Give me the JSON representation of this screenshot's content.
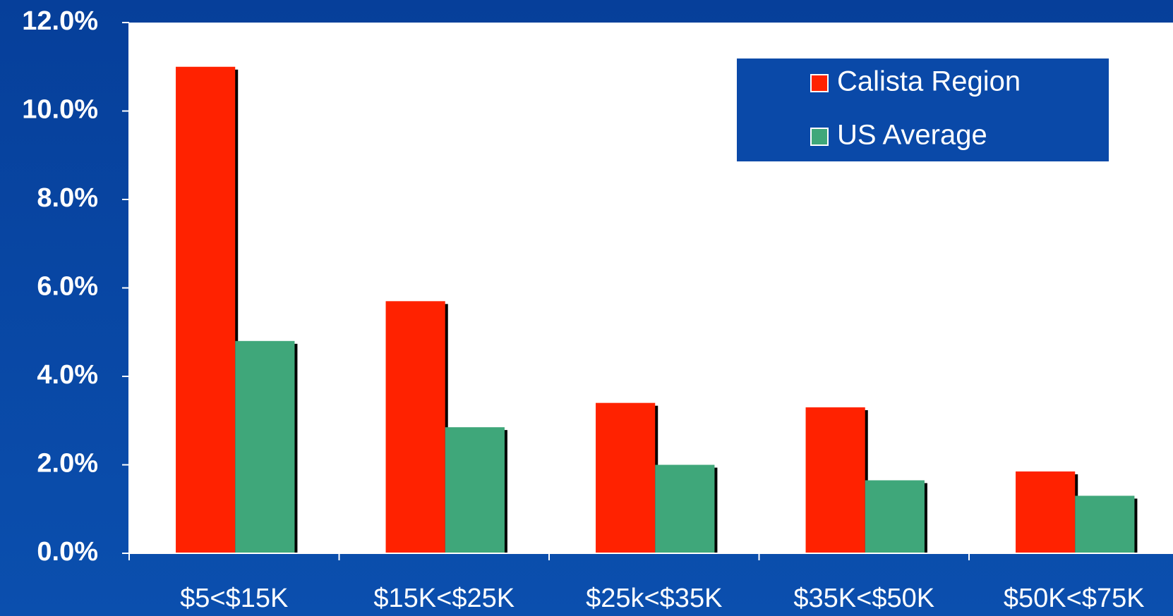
{
  "chart_data": {
    "type": "bar",
    "categories": [
      "$5<$15K",
      "$15K<$25K",
      "$25k<$35K",
      "$35K<$50K",
      "$50K<$75K"
    ],
    "series": [
      {
        "name": "Calista Region",
        "color": "#ff2200",
        "values": [
          11.0,
          5.7,
          3.4,
          3.3,
          1.85
        ]
      },
      {
        "name": "US Average",
        "color": "#3fa77a",
        "values": [
          4.8,
          2.85,
          2.0,
          1.65,
          1.3
        ]
      }
    ],
    "ylim": [
      0,
      12
    ],
    "yticks": [
      {
        "value": 0,
        "label": "0.0%"
      },
      {
        "value": 2,
        "label": "2.0%"
      },
      {
        "value": 4,
        "label": "4.0%"
      },
      {
        "value": 6,
        "label": "6.0%"
      },
      {
        "value": 8,
        "label": "8.0%"
      },
      {
        "value": 10,
        "label": "10.0%"
      },
      {
        "value": 12,
        "label": "12.0%"
      }
    ],
    "legend": "top-right"
  }
}
